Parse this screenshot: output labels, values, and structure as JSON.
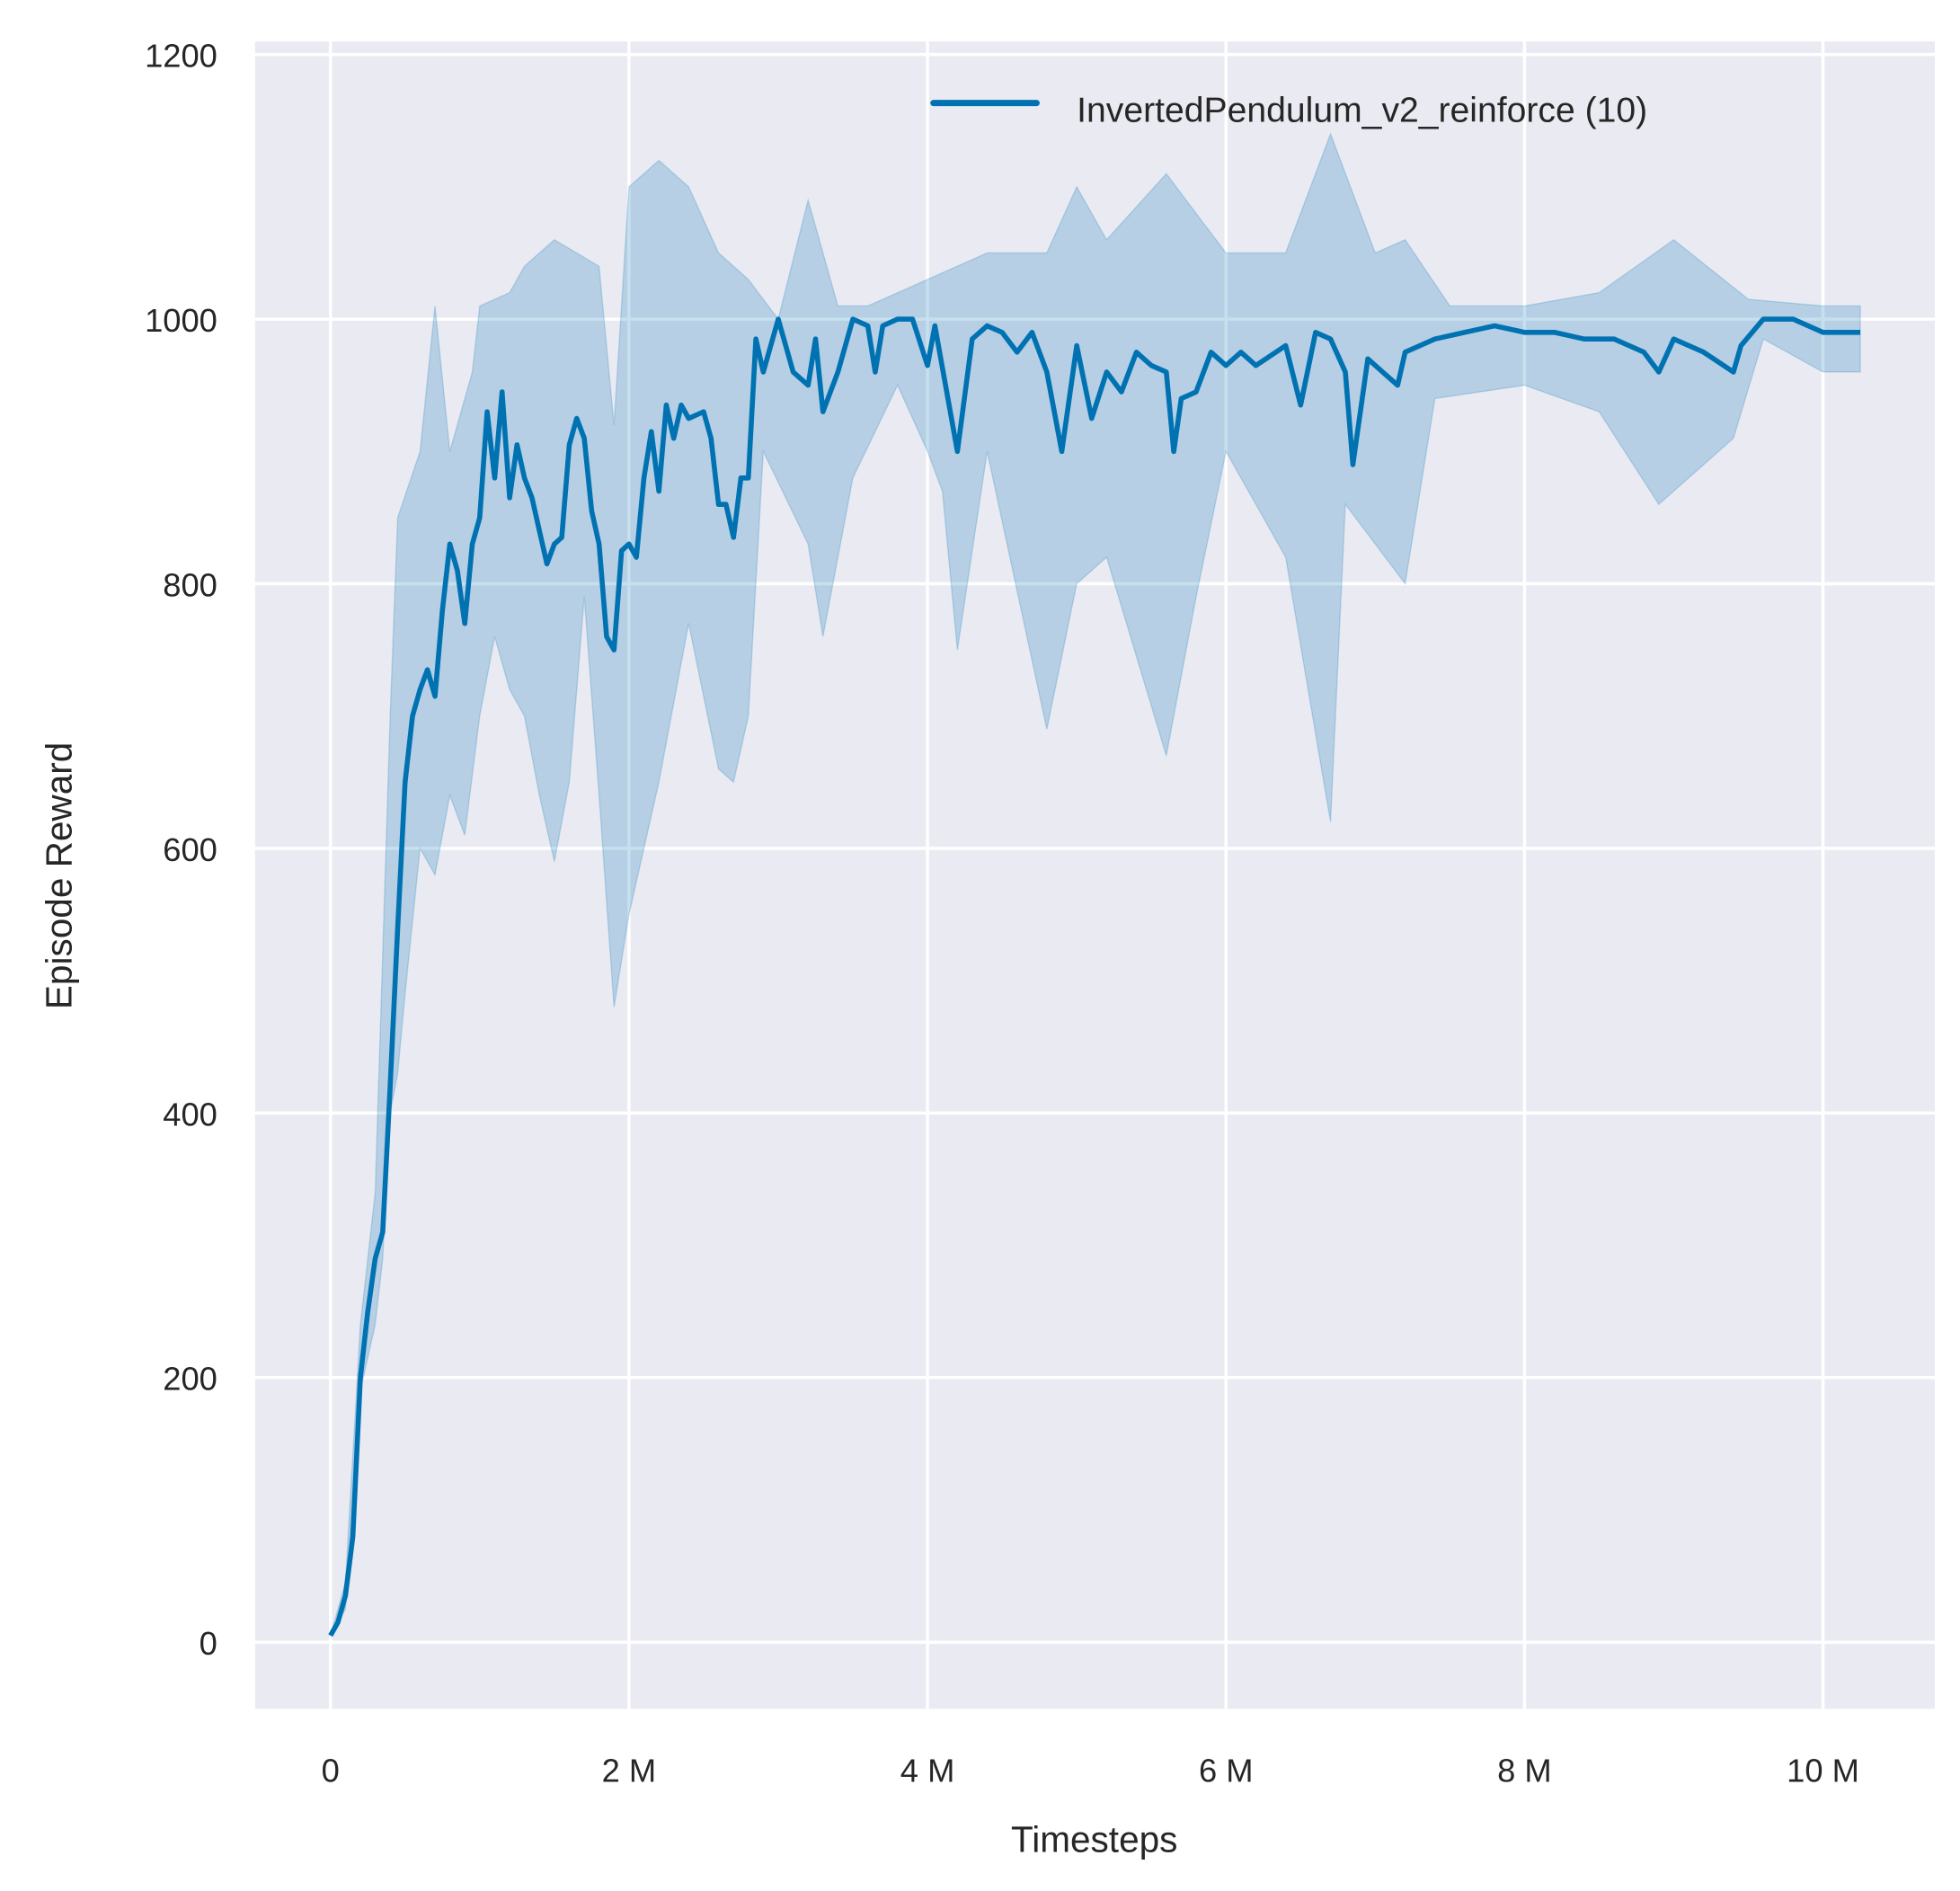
{
  "chart_data": {
    "type": "line",
    "title": "",
    "xlabel": "Timesteps",
    "ylabel": "Episode Reward",
    "xlim": [
      -0.25,
      10.65
    ],
    "ylim": [
      -50,
      1210
    ],
    "x_unit": "M",
    "xticks": [
      0,
      2,
      4,
      6,
      8,
      10
    ],
    "xtick_labels": [
      "0",
      "2 M",
      "4 M",
      "6 M",
      "8 M",
      "10 M"
    ],
    "yticks": [
      0,
      200,
      400,
      600,
      800,
      1000,
      1200
    ],
    "ytick_labels": [
      "0",
      "200",
      "400",
      "600",
      "800",
      "1000",
      "1200"
    ],
    "grid": true,
    "background": "#eaeaf2",
    "legend": {
      "placement": "top-right",
      "entries": [
        "InvertedPendulum_v2_reinforce (10)"
      ]
    },
    "series": [
      {
        "name": "InvertedPendulum_v2_reinforce (10)",
        "color": "#0072b2",
        "x": [
          0,
          0.05,
          0.1,
          0.15,
          0.2,
          0.25,
          0.3,
          0.35,
          0.4,
          0.45,
          0.5,
          0.55,
          0.6,
          0.65,
          0.7,
          0.75,
          0.8,
          0.85,
          0.9,
          0.95,
          1.0,
          1.05,
          1.1,
          1.15,
          1.2,
          1.25,
          1.3,
          1.35,
          1.4,
          1.45,
          1.5,
          1.55,
          1.6,
          1.65,
          1.7,
          1.75,
          1.8,
          1.85,
          1.9,
          1.95,
          2.0,
          2.05,
          2.1,
          2.15,
          2.2,
          2.25,
          2.3,
          2.35,
          2.4,
          2.5,
          2.55,
          2.6,
          2.65,
          2.7,
          2.75,
          2.8,
          2.85,
          2.9,
          3.0,
          3.1,
          3.2,
          3.25,
          3.3,
          3.4,
          3.5,
          3.6,
          3.65,
          3.7,
          3.8,
          3.9,
          4.0,
          4.05,
          4.2,
          4.3,
          4.4,
          4.5,
          4.6,
          4.7,
          4.8,
          4.9,
          5.0,
          5.1,
          5.2,
          5.3,
          5.4,
          5.5,
          5.6,
          5.65,
          5.7,
          5.8,
          5.9,
          6.0,
          6.1,
          6.2,
          6.4,
          6.5,
          6.6,
          6.7,
          6.8,
          6.85,
          6.95,
          7.05,
          7.15,
          7.2,
          7.4,
          7.6,
          7.8,
          8.0,
          8.2,
          8.4,
          8.6,
          8.8,
          8.9,
          9.0,
          9.2,
          9.4,
          9.45,
          9.6,
          9.8,
          10.0,
          10.2,
          10.25
        ],
        "y": [
          5,
          15,
          35,
          80,
          200,
          250,
          290,
          310,
          420,
          540,
          650,
          700,
          720,
          735,
          715,
          780,
          830,
          810,
          770,
          830,
          850,
          930,
          880,
          945,
          865,
          905,
          880,
          865,
          840,
          815,
          830,
          835,
          905,
          925,
          910,
          855,
          830,
          760,
          750,
          825,
          830,
          820,
          880,
          915,
          870,
          935,
          910,
          935,
          925,
          930,
          910,
          860,
          860,
          835,
          880,
          880,
          985,
          960,
          1000,
          960,
          950,
          985,
          930,
          960,
          1000,
          995,
          960,
          995,
          1000,
          1000,
          965,
          995,
          900,
          985,
          995,
          990,
          975,
          990,
          960,
          900,
          980,
          925,
          960,
          945,
          975,
          965,
          960,
          900,
          940,
          945,
          975,
          965,
          975,
          965,
          980,
          935,
          990,
          985,
          960,
          890,
          970,
          960,
          950,
          975,
          985,
          990,
          995,
          990,
          990,
          985,
          985,
          975,
          960,
          985,
          975,
          960,
          980,
          1000,
          1000,
          990,
          990,
          990
        ],
        "band_upper": {
          "x": [
            0,
            0.1,
            0.2,
            0.3,
            0.4,
            0.45,
            0.6,
            0.7,
            0.8,
            0.95,
            1.0,
            1.2,
            1.3,
            1.5,
            1.8,
            1.9,
            2.0,
            2.2,
            2.4,
            2.6,
            2.8,
            3.0,
            3.2,
            3.4,
            3.6,
            4.0,
            4.4,
            4.8,
            5.0,
            5.2,
            5.6,
            5.8,
            6.0,
            6.4,
            6.7,
            7.0,
            7.2,
            7.5,
            8.0,
            8.5,
            9.0,
            9.5,
            10.0,
            10.25
          ],
          "y": [
            5,
            45,
            240,
            340,
            700,
            850,
            900,
            1010,
            900,
            960,
            1010,
            1020,
            1040,
            1060,
            1040,
            920,
            1100,
            1120,
            1100,
            1050,
            1030,
            1000,
            1090,
            1010,
            1010,
            1030,
            1050,
            1050,
            1100,
            1060,
            1110,
            1080,
            1050,
            1050,
            1140,
            1050,
            1060,
            1010,
            1010,
            1020,
            1060,
            1015,
            1010,
            1010
          ]
        },
        "band_lower": {
          "x": [
            0,
            0.1,
            0.2,
            0.3,
            0.35,
            0.4,
            0.45,
            0.5,
            0.6,
            0.7,
            0.8,
            0.9,
            1.0,
            1.1,
            1.2,
            1.3,
            1.4,
            1.5,
            1.6,
            1.7,
            1.8,
            1.9,
            2.0,
            2.2,
            2.4,
            2.6,
            2.7,
            2.8,
            2.9,
            3.2,
            3.3,
            3.5,
            3.8,
            4.0,
            4.1,
            4.2,
            4.4,
            4.8,
            5.0,
            5.2,
            5.6,
            5.8,
            6.0,
            6.4,
            6.7,
            6.8,
            7.2,
            7.4,
            8.0,
            8.5,
            8.9,
            9.4,
            9.6,
            10.0,
            10.25
          ],
          "y": [
            5,
            25,
            190,
            240,
            290,
            400,
            430,
            490,
            600,
            580,
            640,
            610,
            700,
            760,
            720,
            700,
            640,
            590,
            650,
            790,
            640,
            480,
            550,
            650,
            770,
            660,
            650,
            700,
            900,
            830,
            760,
            880,
            950,
            900,
            870,
            750,
            900,
            690,
            800,
            820,
            670,
            790,
            900,
            820,
            620,
            860,
            800,
            940,
            950,
            930,
            860,
            910,
            985,
            960,
            960
          ]
        }
      }
    ]
  }
}
